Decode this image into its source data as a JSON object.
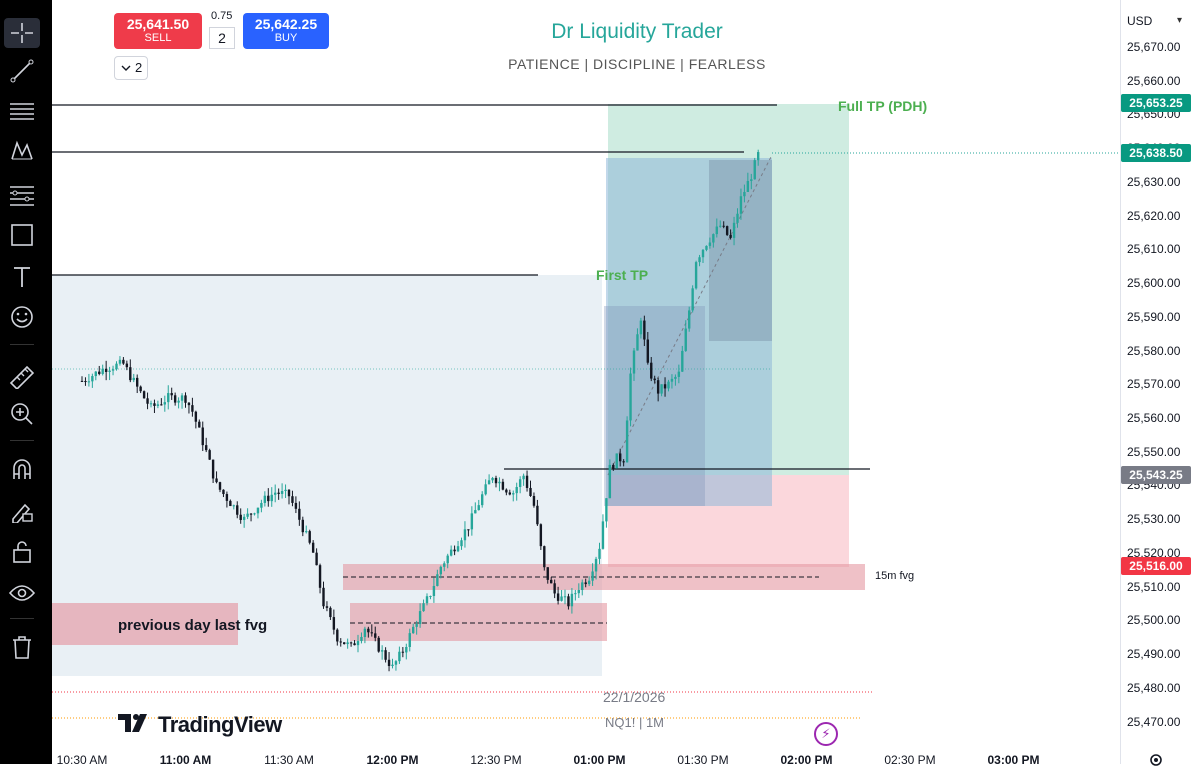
{
  "trade_panel": {
    "sell": {
      "price": "25,641.50",
      "label": "SELL"
    },
    "buy": {
      "price": "25,642.25",
      "label": "BUY"
    },
    "spread": "0.75",
    "quantity": "2",
    "collapse_count": "2"
  },
  "header": {
    "title": "Dr Liquidity Trader",
    "subtitle": "PATIENCE  |  DISCIPLINE  |  FEARLESS"
  },
  "annotations": {
    "full_tp": "Full TP (PDH)",
    "first_tp": "First TP",
    "fvg_15m": "15m fvg",
    "previous_day_fvg": "previous day last fvg"
  },
  "symbol": {
    "date": "22/1/2026",
    "name": "NQ1!  |  1M"
  },
  "brand": {
    "name": "TradingView"
  },
  "currency": "USD",
  "price_ticks": [
    "25,670.00",
    "25,660.00",
    "25,650.00",
    "25,640.00",
    "25,630.00",
    "25,620.00",
    "25,610.00",
    "25,600.00",
    "25,590.00",
    "25,580.00",
    "25,570.00",
    "25,560.00",
    "25,550.00",
    "25,540.00",
    "25,530.00",
    "25,520.00",
    "25,510.00",
    "25,500.00",
    "25,490.00",
    "25,480.00",
    "25,470.00"
  ],
  "price_labels": [
    {
      "value": "25,653.25",
      "color": "#089981"
    },
    {
      "value": "25,638.50",
      "color": "#089981"
    },
    {
      "value": "25,543.25",
      "color": "#787b86"
    },
    {
      "value": "25,516.00",
      "color": "#f23645"
    }
  ],
  "time_ticks": [
    {
      "label": "10:30 AM",
      "bold": false
    },
    {
      "label": "11:00 AM",
      "bold": true
    },
    {
      "label": "11:30 AM",
      "bold": false
    },
    {
      "label": "12:00 PM",
      "bold": true
    },
    {
      "label": "12:30 PM",
      "bold": false
    },
    {
      "label": "01:00 PM",
      "bold": true
    },
    {
      "label": "01:30 PM",
      "bold": false
    },
    {
      "label": "02:00 PM",
      "bold": true
    },
    {
      "label": "02:30 PM",
      "bold": false
    },
    {
      "label": "03:00 PM",
      "bold": true
    }
  ],
  "colors": {
    "up": "#26a69a",
    "down": "#131722",
    "accent": "#26a69a",
    "sell": "#ef3b4a",
    "buy": "#2962ff"
  },
  "toolbar": {
    "tools": [
      "crosshair-icon",
      "trend-line-icon",
      "horizontal-lines-icon",
      "pattern-icon",
      "fib-icon",
      "rectangle-icon",
      "text-icon",
      "emoji-icon",
      "ruler-icon",
      "zoom-icon",
      "magnet-icon",
      "lock-pencil-icon",
      "lock-icon",
      "eye-icon",
      "trash-icon"
    ]
  },
  "chart_data": {
    "type": "candlestick",
    "x_range": [
      "10:30",
      "15:00"
    ],
    "y_range": [
      25465,
      25675
    ],
    "path": [
      [
        "10:30",
        25571
      ],
      [
        "10:37",
        25575
      ],
      [
        "10:42",
        25576
      ],
      [
        "10:46",
        25569
      ],
      [
        "10:50",
        25563
      ],
      [
        "10:55",
        25566
      ],
      [
        "11:00",
        25566
      ],
      [
        "11:02",
        25562
      ],
      [
        "11:06",
        25550
      ],
      [
        "11:09",
        25540
      ],
      [
        "11:13",
        25535
      ],
      [
        "11:17",
        25530
      ],
      [
        "11:22",
        25535
      ],
      [
        "11:26",
        25538
      ],
      [
        "11:30",
        25537
      ],
      [
        "11:33",
        25530
      ],
      [
        "11:37",
        25520
      ],
      [
        "11:40",
        25505
      ],
      [
        "11:44",
        25495
      ],
      [
        "11:48",
        25492
      ],
      [
        "11:52",
        25498
      ],
      [
        "11:56",
        25492
      ],
      [
        "12:00",
        25486
      ],
      [
        "12:03",
        25491
      ],
      [
        "12:07",
        25500
      ],
      [
        "12:11",
        25508
      ],
      [
        "12:14",
        25516
      ],
      [
        "12:18",
        25522
      ],
      [
        "12:22",
        25528
      ],
      [
        "12:26",
        25537
      ],
      [
        "12:29",
        25543
      ],
      [
        "12:33",
        25539
      ],
      [
        "12:35",
        25538
      ],
      [
        "12:38",
        25543
      ],
      [
        "12:41",
        25534
      ],
      [
        "12:44",
        25515
      ],
      [
        "12:47",
        25508
      ],
      [
        "12:51",
        25505
      ],
      [
        "12:54",
        25510
      ],
      [
        "12:57",
        25513
      ],
      [
        "13:00",
        25522
      ],
      [
        "13:03",
        25545
      ],
      [
        "13:05",
        25548
      ],
      [
        "13:07",
        25548
      ],
      [
        "13:09",
        25573
      ],
      [
        "13:12",
        25590
      ],
      [
        "13:14",
        25575
      ],
      [
        "13:17",
        25568
      ],
      [
        "13:20",
        25570
      ],
      [
        "13:23",
        25573
      ],
      [
        "13:26",
        25592
      ],
      [
        "13:28",
        25607
      ],
      [
        "13:31",
        25612
      ],
      [
        "13:35",
        25617
      ],
      [
        "13:38",
        25613
      ],
      [
        "13:41",
        25625
      ],
      [
        "13:44",
        25632
      ],
      [
        "13:46",
        25638
      ]
    ]
  }
}
